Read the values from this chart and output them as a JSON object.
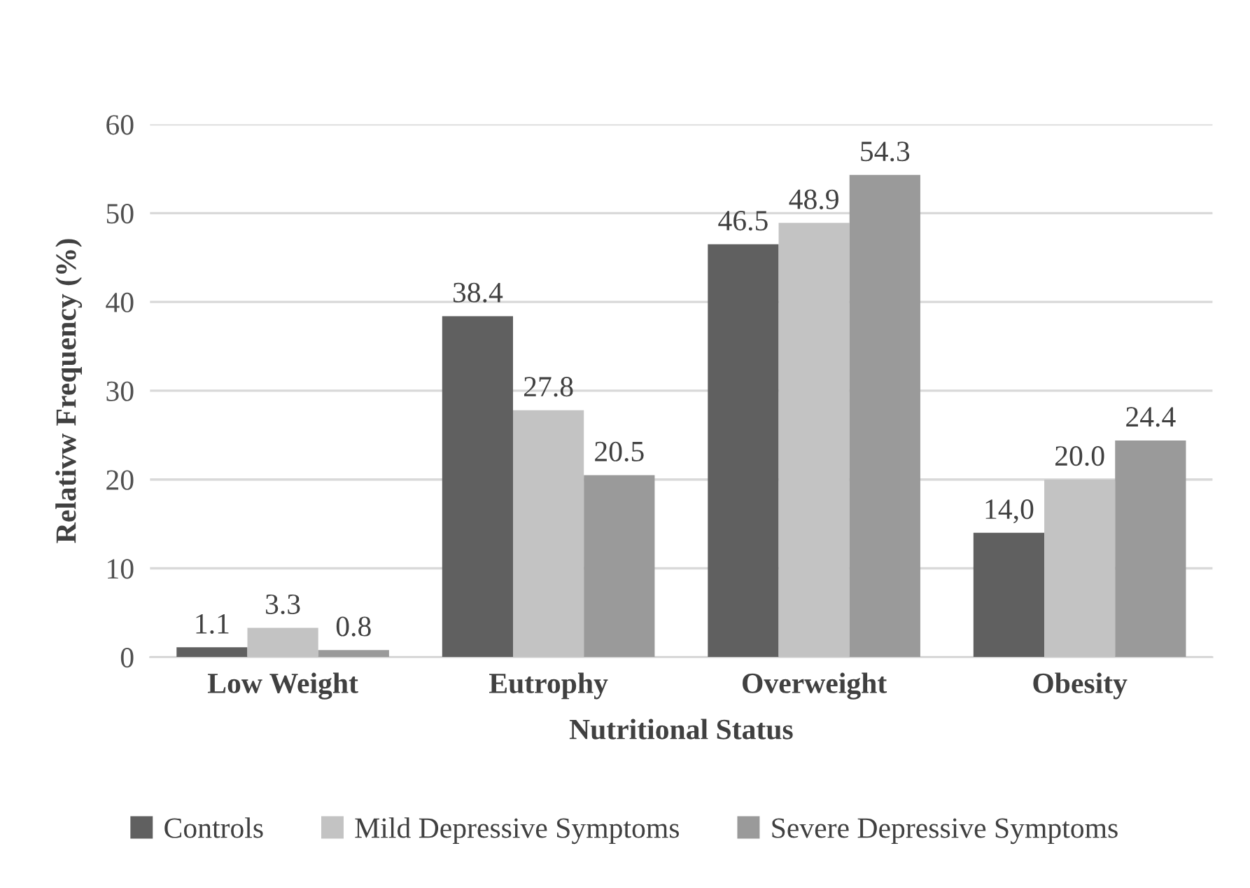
{
  "chart_data": {
    "type": "bar",
    "xlabel": "Nutritional Status",
    "ylabel": "Relativw Frequency (%)",
    "categories": [
      "Low Weight",
      "Eutrophy",
      "Overweight",
      "Obesity"
    ],
    "series": [
      {
        "name": "Controls",
        "color": "#606060",
        "values": [
          1.1,
          38.4,
          46.5,
          14.0
        ],
        "value_labels": [
          "1.1",
          "38.4",
          "46.5",
          "14,0"
        ]
      },
      {
        "name": "Mild Depressive Symptoms",
        "color": "#c3c3c3",
        "values": [
          3.3,
          27.8,
          48.9,
          20.0
        ],
        "value_labels": [
          "3.3",
          "27.8",
          "48.9",
          "20.0"
        ]
      },
      {
        "name": "Severe Depressive Symptoms",
        "color": "#9a9a9a",
        "values": [
          0.8,
          20.5,
          54.3,
          24.4
        ],
        "value_labels": [
          "0.8",
          "20.5",
          "54.3",
          "24.4"
        ]
      }
    ],
    "ylim": [
      0,
      60
    ],
    "yticks": [
      0,
      10,
      20,
      30,
      40,
      50,
      60
    ],
    "grid": "y",
    "legend": "bottom"
  }
}
